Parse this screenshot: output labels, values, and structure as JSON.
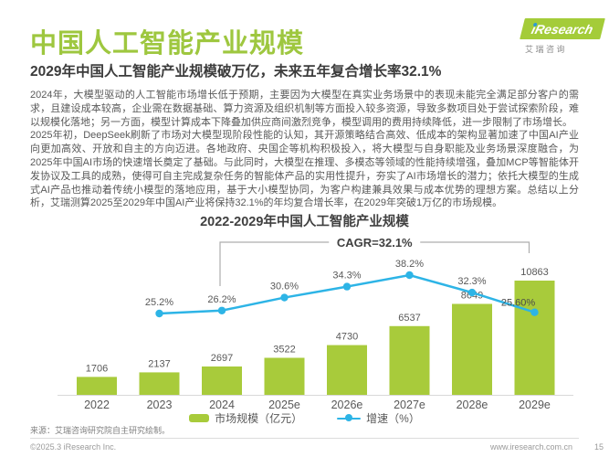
{
  "header": {
    "title": "中国人工智能产业规模",
    "logo_text": "iResearch",
    "logo_subtext_chars": "艾 瑞 咨 询"
  },
  "subtitle": "2029年中国人工智能产业规模破万亿，未来五年复合增长率32.1%",
  "paragraphs": [
    "2024年，大模型驱动的人工智能市场增长低于预期，主要因为大模型在真实业务场景中的表现未能完全满足部分客户的需求，且建设成本较高，企业需在数据基础、算力资源及组织机制等方面投入较多资源，导致多数项目处于尝试探索阶段，难以规模化落地；另一方面，模型计算成本下降叠加供应商间激烈竞争，模型调用的费用持续降低，进一步限制了市场增长。",
    "2025年初，DeepSeek刷新了市场对大模型现阶段性能的认知，其开源策略结合高效、低成本的架构显著加速了中国AI产业向更加高效、开放和自主的方向迈进。各地政府、央国企等机构积极投入，将大模型与自身职能及业务场景深度融合，为2025年中国AI市场的快速增长奠定了基础。与此同时，大模型在推理、多模态等领域的性能持续增强，叠加MCP等智能体开发协议及工具的成熟，使得可自主完成复杂任务的智能体产品的实用性提升，夯实了AI市场增长的潜力；依托大模型的生成式AI产品也推动着传统小模型的落地应用，基于大小模型协同，为客户构建兼具效果与成本优势的理想方案。总结以上分析，艾瑞测算2025至2029年中国AI产业将保持32.1%的年均复合增长率，在2029年突破1万亿的市场规模。"
  ],
  "chart_data": {
    "type": "bar+line",
    "title": "2022-2029年中国人工智能产业规模",
    "categories": [
      "2022",
      "2023",
      "2024",
      "2025e",
      "2026e",
      "2027e",
      "2028e",
      "2029e"
    ],
    "series": [
      {
        "name": "市场规模（亿元）",
        "type": "bar",
        "values": [
          1706,
          2137,
          2697,
          3522,
          4730,
          6537,
          8649,
          10863
        ],
        "color": "#A8CB3B"
      },
      {
        "name": "增速（%）",
        "type": "line",
        "x_start_index": 1,
        "values": [
          25.2,
          26.2,
          30.6,
          34.3,
          38.2,
          32.3,
          25.6
        ],
        "labels": [
          "25.2%",
          "26.2%",
          "30.6%",
          "34.3%",
          "38.2%",
          "32.3%",
          "25.60%"
        ],
        "color": "#2DB4E6"
      }
    ],
    "annotation": {
      "text": "CAGR=32.1%",
      "span": [
        "2024",
        "2029e"
      ]
    },
    "legend": [
      "市场规模（亿元）",
      "增速（%）"
    ],
    "legend_position": "bottom",
    "grid": false,
    "axis_color": "#D9D9D9",
    "label_color": "#595959"
  },
  "source": "来源：艾瑞咨询研究院自主研究绘制。",
  "footer": {
    "copyright": "©2025.3 iResearch Inc.",
    "website": "www.iresearch.com.cn",
    "page_number": "15"
  }
}
